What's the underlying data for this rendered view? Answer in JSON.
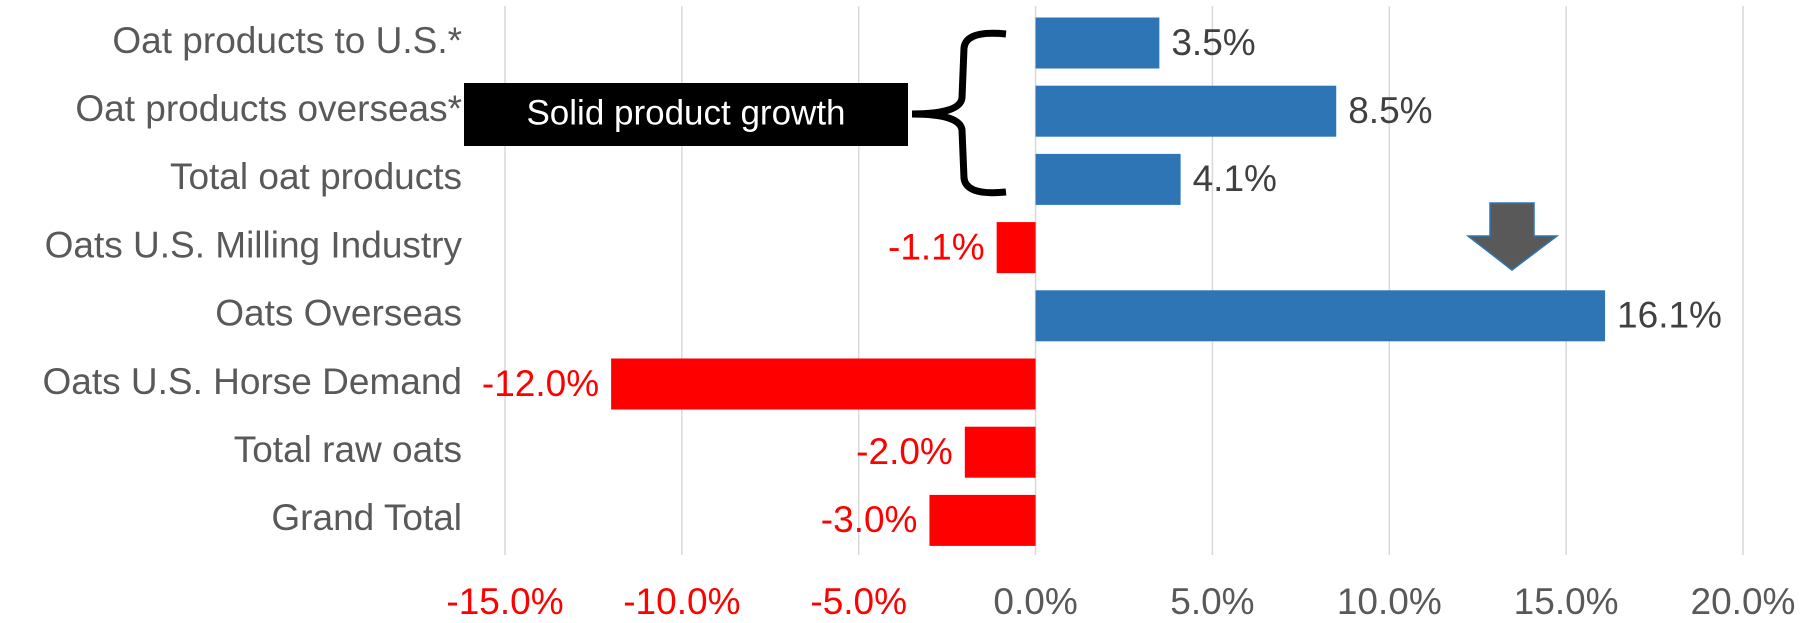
{
  "chart_data": {
    "type": "bar",
    "orientation": "horizontal",
    "categories": [
      "Oat products to U.S.*",
      "Oat products overseas*",
      "Total oat products",
      "Oats U.S. Milling Industry",
      "Oats Overseas",
      "Oats U.S. Horse Demand",
      "Total raw oats",
      "Grand Total"
    ],
    "values": [
      3.5,
      8.5,
      4.1,
      -1.1,
      16.1,
      -12.0,
      -2.0,
      -3.0
    ],
    "value_labels": [
      "3.5%",
      "8.5%",
      "4.1%",
      "-1.1%",
      "16.1%",
      "-12.0%",
      "-2.0%",
      "-3.0%"
    ],
    "color": "#2e75b6",
    "negative_color": "#ff0000",
    "xlim": [
      -15,
      20
    ],
    "xticks": [
      {
        "value": -15,
        "label": "-15.0%"
      },
      {
        "value": -10,
        "label": "-10.0%"
      },
      {
        "value": -5,
        "label": "-5.0%"
      },
      {
        "value": 0,
        "label": "0.0%"
      },
      {
        "value": 5,
        "label": "5.0%"
      },
      {
        "value": 10,
        "label": "10.0%"
      },
      {
        "value": 15,
        "label": "15.0%"
      },
      {
        "value": 20,
        "label": "20.0%"
      }
    ],
    "grid": true,
    "annotations": [
      "Solid product growth"
    ]
  }
}
